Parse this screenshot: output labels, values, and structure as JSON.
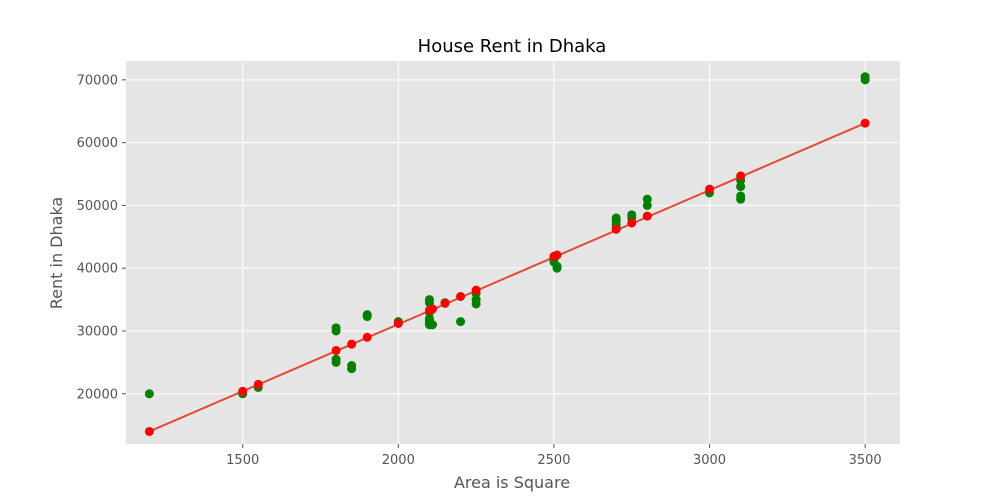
{
  "chart_data": {
    "type": "scatter",
    "title": "House Rent in Dhaka",
    "xlabel": "Area is Square",
    "ylabel": "Rent in Dhaka",
    "xlim": [
      1125,
      3612
    ],
    "ylim": [
      12000,
      73000
    ],
    "xticks": [
      1500,
      2000,
      2500,
      3000,
      3500
    ],
    "yticks": [
      20000,
      30000,
      40000,
      50000,
      60000,
      70000
    ],
    "grid": true,
    "legend": "none",
    "colors": {
      "background": "#e5e5e5",
      "grid": "#ffffff",
      "actual": "#008000",
      "predicted": "#ff0000",
      "line": "#e24a33"
    },
    "series": [
      {
        "kind": "actual",
        "color": "#008000",
        "points": [
          [
            1200,
            20000
          ],
          [
            1500,
            20000
          ],
          [
            1550,
            21000
          ],
          [
            1800,
            25000
          ],
          [
            1800,
            25500
          ],
          [
            1800,
            30000
          ],
          [
            1800,
            30500
          ],
          [
            1850,
            24000
          ],
          [
            1850,
            24500
          ],
          [
            1900,
            32300
          ],
          [
            1900,
            32600
          ],
          [
            2000,
            31500
          ],
          [
            2100,
            31000
          ],
          [
            2100,
            31300
          ],
          [
            2100,
            31700
          ],
          [
            2100,
            32000
          ],
          [
            2100,
            33000
          ],
          [
            2100,
            34500
          ],
          [
            2100,
            35000
          ],
          [
            2110,
            31000
          ],
          [
            2150,
            34500
          ],
          [
            2200,
            31500
          ],
          [
            2250,
            34300
          ],
          [
            2250,
            35000
          ],
          [
            2250,
            36000
          ],
          [
            2500,
            41000
          ],
          [
            2500,
            41500
          ],
          [
            2510,
            40000
          ],
          [
            2510,
            40300
          ],
          [
            2700,
            46500
          ],
          [
            2700,
            47000
          ],
          [
            2700,
            47500
          ],
          [
            2700,
            48000
          ],
          [
            2750,
            48000
          ],
          [
            2750,
            48500
          ],
          [
            2800,
            50000
          ],
          [
            2800,
            51000
          ],
          [
            3000,
            52000
          ],
          [
            3100,
            51000
          ],
          [
            3100,
            51500
          ],
          [
            3100,
            53000
          ],
          [
            3100,
            54000
          ],
          [
            3500,
            70000
          ],
          [
            3500,
            70500
          ]
        ]
      },
      {
        "kind": "predicted",
        "color": "#ff0000",
        "points": [
          [
            1200,
            14000
          ],
          [
            1500,
            20400
          ],
          [
            1550,
            21500
          ],
          [
            1800,
            26900
          ],
          [
            1850,
            27900
          ],
          [
            1900,
            29000
          ],
          [
            2000,
            31200
          ],
          [
            2100,
            33300
          ],
          [
            2110,
            33500
          ],
          [
            2150,
            34400
          ],
          [
            2200,
            35500
          ],
          [
            2250,
            36500
          ],
          [
            2500,
            41900
          ],
          [
            2510,
            42100
          ],
          [
            2700,
            46200
          ],
          [
            2750,
            47200
          ],
          [
            2800,
            48300
          ],
          [
            3000,
            52600
          ],
          [
            3100,
            54700
          ],
          [
            3500,
            63100
          ]
        ]
      }
    ],
    "fit_line": {
      "color": "#e24a33",
      "start": [
        1200,
        14000
      ],
      "end": [
        3500,
        63100
      ]
    }
  }
}
